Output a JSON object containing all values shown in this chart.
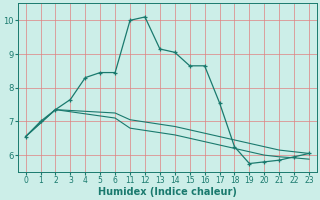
{
  "background_color": "#cceee8",
  "line_color": "#1a7a6e",
  "grid_color": "#e08080",
  "xlabel": "Humidex (Indice chaleur)",
  "xlim": [
    -0.5,
    19.5
  ],
  "ylim": [
    5.5,
    10.5
  ],
  "yticks": [
    6,
    7,
    8,
    9,
    10
  ],
  "xtick_positions": [
    0,
    1,
    2,
    3,
    4,
    5,
    6,
    7,
    8,
    9,
    10,
    11,
    12,
    13,
    14,
    15,
    16,
    17,
    18,
    19
  ],
  "xtick_labels": [
    "0",
    "1",
    "2",
    "3",
    "4",
    "5",
    "6",
    "11",
    "12",
    "13",
    "14",
    "15",
    "16",
    "17",
    "18",
    "19",
    "20",
    "21",
    "22",
    "23"
  ],
  "line1_x_raw": [
    0,
    1,
    2,
    3,
    4,
    5,
    6,
    11,
    12,
    13,
    14,
    15,
    16,
    17,
    18,
    19,
    20,
    21,
    22,
    23
  ],
  "line1_y": [
    6.55,
    7.0,
    7.35,
    7.65,
    8.3,
    8.45,
    8.45,
    10.0,
    10.1,
    9.15,
    9.05,
    8.65,
    8.65,
    7.55,
    6.25,
    5.75,
    5.8,
    5.85,
    5.95,
    6.05
  ],
  "line2_x_raw": [
    0,
    2,
    6,
    11,
    14,
    15,
    16,
    17,
    18,
    19,
    20,
    21,
    22,
    23
  ],
  "line2_y": [
    6.55,
    7.35,
    7.25,
    7.05,
    6.85,
    6.75,
    6.65,
    6.55,
    6.45,
    6.35,
    6.25,
    6.15,
    6.1,
    6.05
  ],
  "line3_x_raw": [
    0,
    2,
    6,
    11,
    14,
    15,
    16,
    17,
    18,
    19,
    20,
    21,
    22,
    23
  ],
  "line3_y": [
    6.55,
    7.35,
    7.1,
    6.8,
    6.6,
    6.5,
    6.4,
    6.3,
    6.2,
    6.1,
    6.0,
    5.95,
    5.92,
    5.88
  ]
}
